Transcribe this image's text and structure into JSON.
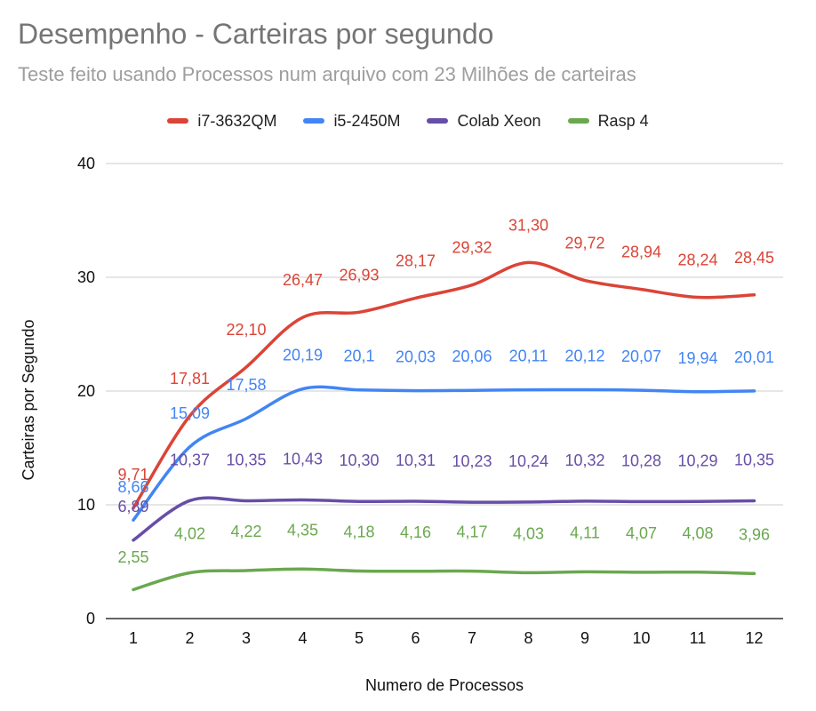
{
  "chart_data": {
    "type": "line",
    "title": "Desempenho - Carteiras por segundo",
    "subtitle": "Teste feito usando Processos num arquivo com 23 Milhões de carteiras",
    "xlabel": "Numero de Processos",
    "ylabel": "Carteiras por Segundo",
    "x": [
      1,
      2,
      3,
      4,
      5,
      6,
      7,
      8,
      9,
      10,
      11,
      12
    ],
    "ylim": [
      0,
      40
    ],
    "yticks": [
      0,
      10,
      20,
      30,
      40
    ],
    "grid": true,
    "legend_position": "top",
    "series": [
      {
        "name": "i7-3632QM",
        "color": "#db4437",
        "values": [
          9.71,
          17.81,
          22.1,
          26.47,
          26.93,
          28.17,
          29.32,
          31.3,
          29.72,
          28.94,
          28.24,
          28.45
        ],
        "labels": [
          "9,71",
          "17,81",
          "22,10",
          "26,47",
          "26,93",
          "28,17",
          "29,32",
          "31,30",
          "29,72",
          "28,94",
          "28,24",
          "28,45"
        ]
      },
      {
        "name": "i5-2450M",
        "color": "#4285f4",
        "values": [
          8.66,
          15.09,
          17.58,
          20.19,
          20.1,
          20.03,
          20.06,
          20.11,
          20.12,
          20.07,
          19.94,
          20.01
        ],
        "labels": [
          "8,66",
          "15,09",
          "17,58",
          "20,19",
          "20,1",
          "20,03",
          "20,06",
          "20,11",
          "20,12",
          "20,07",
          "19,94",
          "20,01"
        ]
      },
      {
        "name": "Colab Xeon",
        "color": "#674ea7",
        "values": [
          6.89,
          10.37,
          10.35,
          10.43,
          10.3,
          10.31,
          10.23,
          10.24,
          10.32,
          10.28,
          10.29,
          10.35
        ],
        "labels": [
          "6,89",
          "10,37",
          "10,35",
          "10,43",
          "10,30",
          "10,31",
          "10,23",
          "10,24",
          "10,32",
          "10,28",
          "10,29",
          "10,35"
        ]
      },
      {
        "name": "Rasp 4",
        "color": "#6aa84f",
        "values": [
          2.55,
          4.02,
          4.22,
          4.35,
          4.18,
          4.16,
          4.17,
          4.03,
          4.11,
          4.07,
          4.08,
          3.96
        ],
        "labels": [
          "2,55",
          "4,02",
          "4,22",
          "4,35",
          "4,18",
          "4,16",
          "4,17",
          "4,03",
          "4,11",
          "4,07",
          "4,08",
          "3,96"
        ]
      }
    ]
  }
}
